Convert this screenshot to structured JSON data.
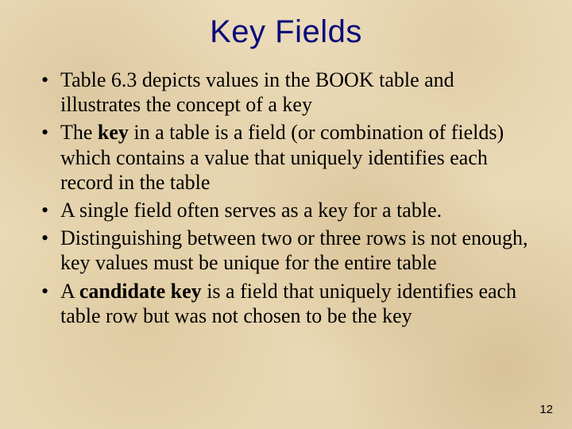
{
  "slide": {
    "title": "Key Fields",
    "page_number": "12",
    "background_color": "#e9d9b6",
    "title_color": "#0a0a7a",
    "title_font": "Arial",
    "title_fontsize_pt": 30,
    "body_font": "Times New Roman",
    "body_fontsize_pt": 20,
    "text_color": "#000000",
    "bullets": [
      {
        "pre": "Table 6.3 depicts values in the BOOK table and illustrates the concept of a key",
        "bold": "",
        "post": ""
      },
      {
        "pre": "The ",
        "bold": "key",
        "post": " in a table is a field (or combination of fields) which contains a value that uniquely identifies each record in the table"
      },
      {
        "pre": "A single field often serves as a key for a table.",
        "bold": "",
        "post": ""
      },
      {
        "pre": "Distinguishing between two or three rows is not enough, key values must be unique for the entire table",
        "bold": "",
        "post": ""
      },
      {
        "pre": "A ",
        "bold": "candidate key",
        "post": " is a field that uniquely identifies each table row but was not chosen to be the key"
      }
    ]
  }
}
